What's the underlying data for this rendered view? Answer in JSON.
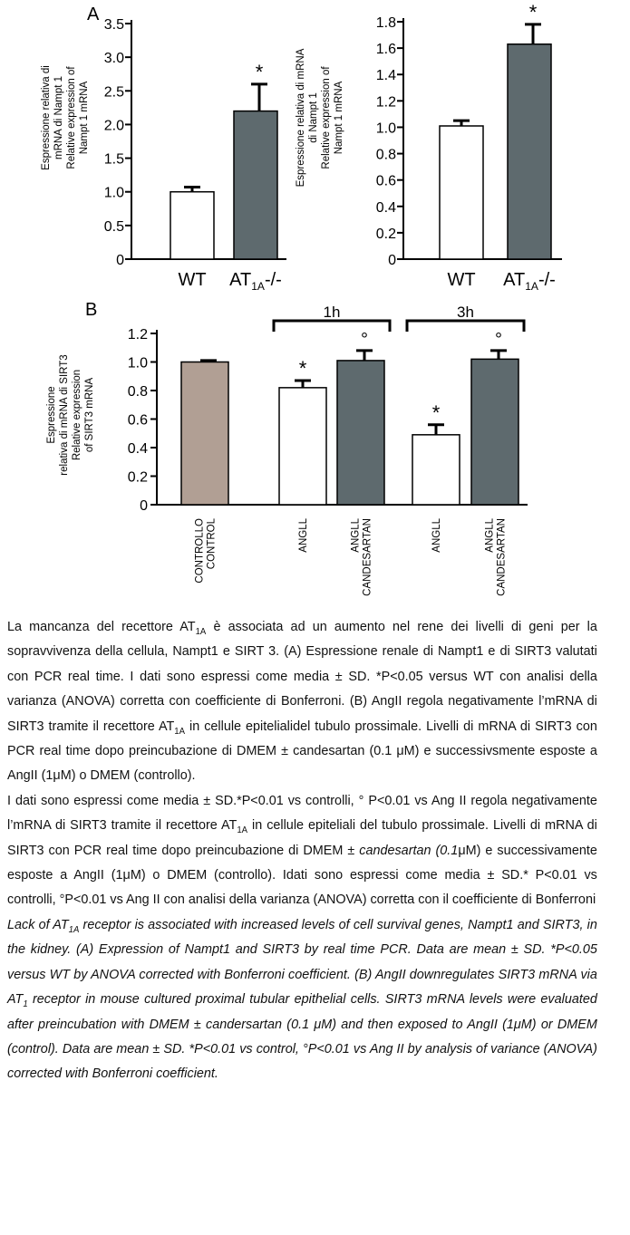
{
  "colors": {
    "white_bar": "#ffffff",
    "dark_bar": "#5e6a6e",
    "control_bar": "#b19f94",
    "axis": "#000000"
  },
  "chart_data": [
    {
      "type": "bar",
      "panel": "A",
      "title": "",
      "ylabel_lines": [
        "Espressione relativa di",
        "mRNA di Nampt 1",
        "Relative expression of",
        "Nampt 1 mRNA"
      ],
      "ylim": [
        0,
        3.5
      ],
      "yticks": [
        "0",
        "0.5",
        "1.0",
        "1.5",
        "2.0",
        "2.5",
        "3.0",
        "3.5"
      ],
      "categories": [
        {
          "main": "WT",
          "sub": ""
        },
        {
          "main": "AT",
          "sub": "1A",
          "suffix": "-/-"
        }
      ],
      "values": [
        1.0,
        2.2
      ],
      "errors": [
        0.07,
        0.4
      ],
      "fills": [
        "white",
        "dark"
      ],
      "marks": [
        "",
        "*"
      ]
    },
    {
      "type": "bar",
      "panel": "",
      "title": "",
      "ylabel_lines": [
        "Espressione relativa di mRNA",
        "di Nampt 1",
        "Relative expression of",
        "Nampt 1 mRNA"
      ],
      "ylim": [
        0,
        1.8
      ],
      "yticks": [
        "0",
        "0.2",
        "0.4",
        "0.6",
        "0.8",
        "1.0",
        "1.2",
        "1.4",
        "1.6",
        "1.8"
      ],
      "categories": [
        {
          "main": "WT",
          "sub": ""
        },
        {
          "main": "AT",
          "sub": "1A",
          "suffix": "-/-"
        }
      ],
      "values": [
        1.01,
        1.63
      ],
      "errors": [
        0.04,
        0.15
      ],
      "fills": [
        "white",
        "dark"
      ],
      "marks": [
        "",
        "*"
      ]
    },
    {
      "type": "bar",
      "panel": "B",
      "title": "",
      "ylabel_lines": [
        "Espressione",
        "relativa di mRNA di SIRT3",
        "Relative expression",
        "of SIRT3 mRNA"
      ],
      "ylim": [
        0,
        1.2
      ],
      "yticks": [
        "0",
        "0.2",
        "0.4",
        "0.6",
        "0.8",
        "1.0",
        "1.2"
      ],
      "categories": [
        [
          "CONTROLLO",
          "CONTROL"
        ],
        [
          "ANGLL"
        ],
        [
          "ANGLL",
          "+ CANDESARTAN"
        ],
        [
          "ANGLL"
        ],
        [
          "ANGLL",
          "+ CANDESARTAN"
        ]
      ],
      "values": [
        1.0,
        0.82,
        1.01,
        0.49,
        1.02
      ],
      "errors": [
        0.01,
        0.05,
        0.07,
        0.07,
        0.06
      ],
      "fills": [
        "control",
        "white",
        "dark",
        "white",
        "dark"
      ],
      "marks": [
        "",
        "*",
        "°",
        "*",
        "°"
      ],
      "brackets": [
        {
          "label": "1h",
          "from": 1,
          "to": 2
        },
        {
          "label": "3h",
          "from": 3,
          "to": 4
        }
      ]
    }
  ],
  "caption": {
    "p1": [
      {
        "t": "La mancanza del recettore AT"
      },
      {
        "t": "1A",
        "sub": true
      },
      {
        "t": " è associata ad un aumento nel rene dei livelli di geni per la sopravvivenza della cellula, Nampt1 e SIRT 3. (A) Espressione renale di Nampt1 e di SIRT3 valutati con PCR real time. I dati sono espressi come media ± SD. *P<0.05 versus WT con analisi della varianza (ANOVA) corretta con coefficiente di Bonferroni. (B) AngII regola negativamente l’mRNA di SIRT3 tramite il recettore AT"
      },
      {
        "t": "1A",
        "sub": true
      },
      {
        "t": " in cellule epitelialidel tubulo prossimale. Livelli di mRNA di SIRT3 con PCR real time dopo preincubazione di DMEM ± candesartan (0.1 μM) e successivsmente esposte a AngII (1μM) o DMEM (controllo)."
      }
    ],
    "p2": [
      {
        "t": "I dati sono espressi come media ± SD.*P<0.01 vs controlli, ° P<0.01 vs Ang II regola negativamente  l’mRNA di SIRT3 tramite il recettore AT"
      },
      {
        "t": "1A",
        "sub": true
      },
      {
        "t": " in cellule epiteliali del tubulo prossimale. Livelli di mRNA di SIRT3 con PCR real time dopo preincubazione di DMEM ± "
      },
      {
        "t": "candesartan (0.1",
        "it": true
      },
      {
        "t": "μM) e successivamente esposte a AngII (1μM) o DMEM (controllo). Idati sono espressi come media ± SD.* P<0.01 vs controlli, °P<0.01 vs Ang II con analisi della varianza (ANOVA) corretta con il coefficiente di Bonferroni"
      }
    ],
    "p3": [
      {
        "t": "Lack of AT"
      },
      {
        "t": "1A",
        "sub": true
      },
      {
        "t": " receptor is associated with increased levels of cell survival genes, Nampt1 and SIRT3, in the kidney. (A) Expression of Nampt1 and SIRT3 by real time PCR. Data are mean ± SD. *P<0.05 versus WT by ANOVA corrected with Bonferroni coefficient. (B) AngII downregulates SIRT3 mRNA via AT"
      },
      {
        "t": "1",
        "sub": true
      },
      {
        "t": " receptor in mouse cultured proximal tubular epithelial cells. SIRT3 mRNA levels were evaluated after preincubation with DMEM ± candersartan (0.1 μM) and then exposed to AngII (1μM) or DMEM (control). Data are mean ± SD. *P<0.01 vs control, °P<0.01 vs Ang II by analysis of variance (ANOVA) corrected with Bonferroni coefficient."
      }
    ]
  }
}
